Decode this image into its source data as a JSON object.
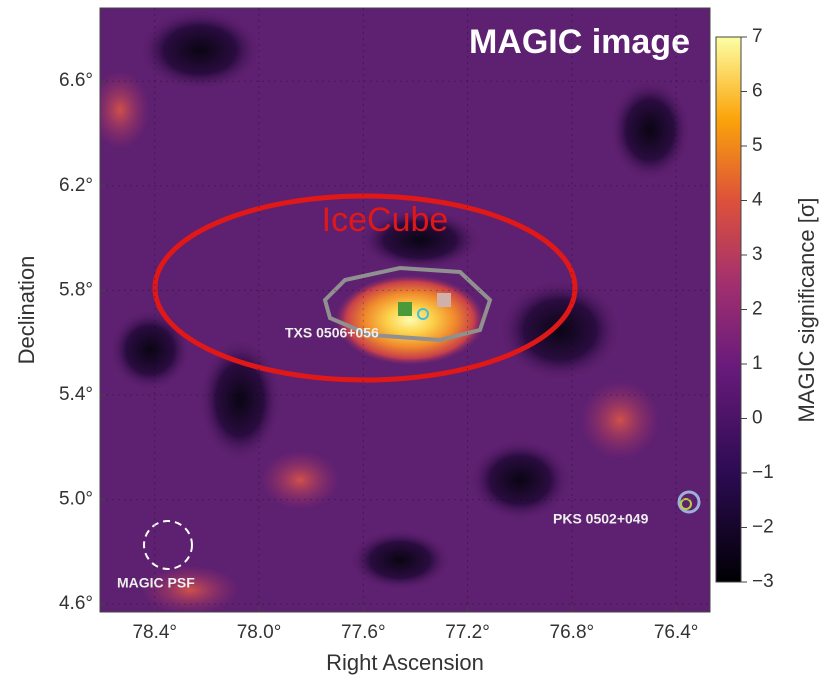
{
  "chart_data": {
    "type": "skymap",
    "title": "MAGIC image",
    "xlabel": "Right Ascension",
    "ylabel": "Declination",
    "colorbar_label": "MAGIC significance [σ]",
    "xlim": [
      78.61,
      76.27
    ],
    "ylim": [
      4.57,
      6.88
    ],
    "xticks": [
      {
        "value": 78.4,
        "label": "78.4°"
      },
      {
        "value": 78.0,
        "label": "78.0°"
      },
      {
        "value": 77.6,
        "label": "77.6°"
      },
      {
        "value": 77.2,
        "label": "77.2°"
      },
      {
        "value": 76.8,
        "label": "76.8°"
      },
      {
        "value": 76.4,
        "label": "76.4°"
      }
    ],
    "yticks": [
      {
        "value": 4.6,
        "label": "4.6°"
      },
      {
        "value": 5.0,
        "label": "5.0°"
      },
      {
        "value": 5.4,
        "label": "5.4°"
      },
      {
        "value": 5.8,
        "label": "5.8°"
      },
      {
        "value": 6.2,
        "label": "6.2°"
      },
      {
        "value": 6.6,
        "label": "6.6°"
      }
    ],
    "clim": [
      -3,
      7
    ],
    "cticks": [
      {
        "value": -3,
        "label": "−3"
      },
      {
        "value": -2,
        "label": "−2"
      },
      {
        "value": -1,
        "label": "−1"
      },
      0,
      1,
      2,
      3,
      4,
      5,
      6,
      7
    ],
    "grid": true,
    "annotations": [
      "IceCube",
      "TXS 0506+056",
      "PKS 0502+049",
      "MAGIC PSF"
    ]
  }
}
